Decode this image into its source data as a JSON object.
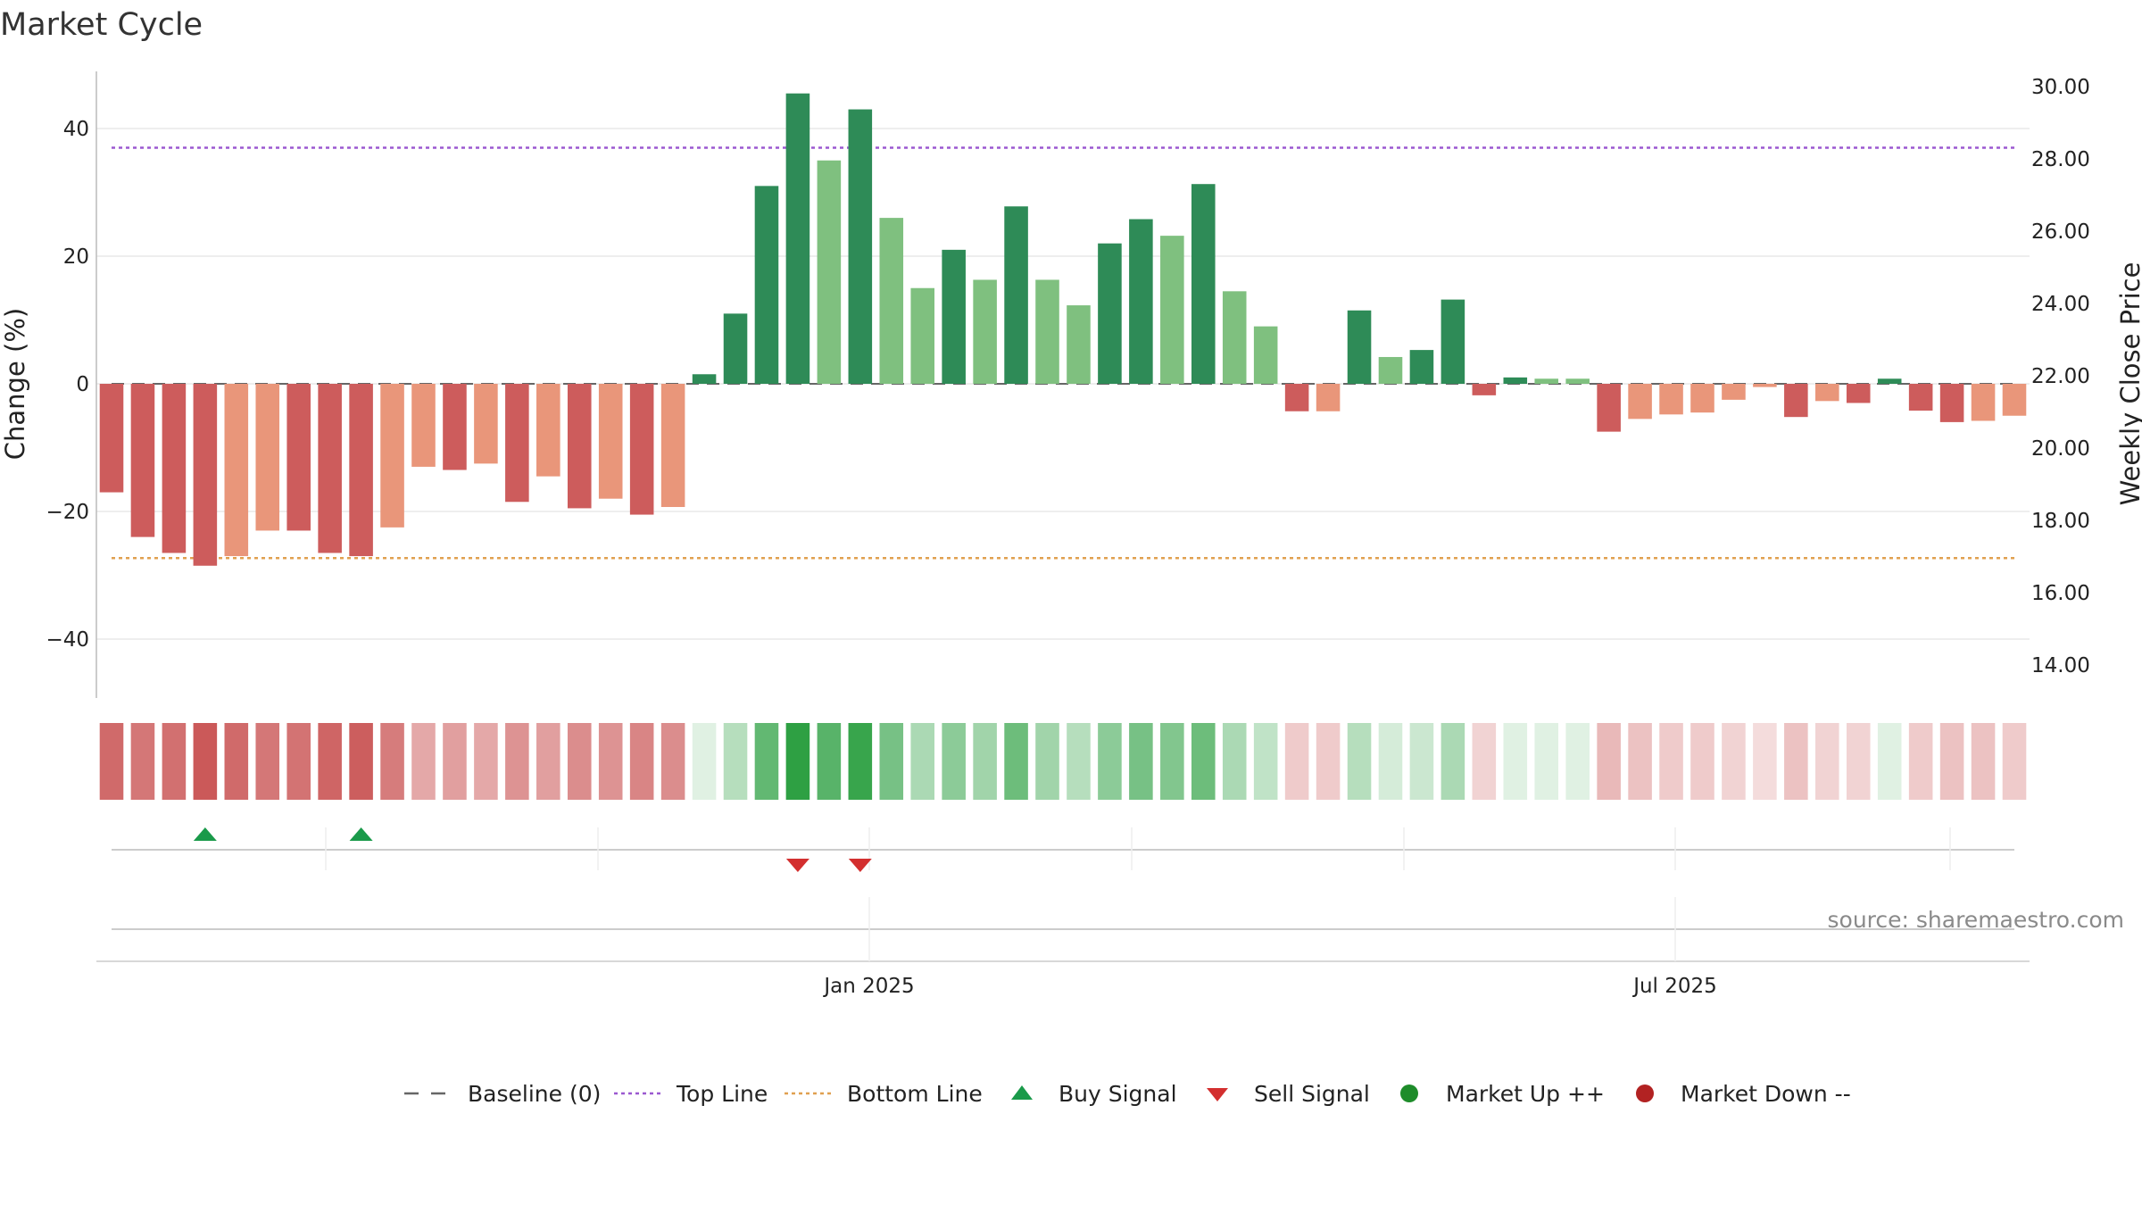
{
  "chart_data": {
    "type": "bar",
    "title": "Market Cycle",
    "ylabel": "Change (%)",
    "ylabel_right": "Weekly Close Price",
    "ylim": [
      -49,
      49
    ],
    "ylim_right": [
      13.5,
      30.2
    ],
    "yticks": [
      40,
      20,
      0,
      -20,
      -40
    ],
    "ytick_labels": [
      "40",
      "20",
      "0",
      "−20",
      "−40"
    ],
    "yticks_right": [
      30,
      28,
      26,
      24,
      22,
      20,
      18,
      16,
      14
    ],
    "ytick_labels_right": [
      "30.00",
      "28.00",
      "26.00",
      "24.00",
      "22.00",
      "20.00",
      "18.00",
      "16.00",
      "14.00"
    ],
    "x_labels": [
      "Jan 2025",
      "Jul 2025"
    ],
    "baseline": 0,
    "top_line": 37,
    "bottom_line": -27.3,
    "values": [
      -17,
      -24,
      -26.5,
      -28.5,
      -27,
      -23,
      -23,
      -26.5,
      -27,
      -22.5,
      -13,
      -13.5,
      -12.5,
      -18.5,
      -14.5,
      -19.5,
      -18,
      -20.5,
      -19.3,
      1.5,
      11,
      31,
      45.5,
      35,
      43,
      26,
      15,
      21,
      16.3,
      27.8,
      16.3,
      12.3,
      22,
      25.8,
      23.2,
      31.3,
      14.5,
      9,
      -4.3,
      -4.3,
      11.5,
      4.2,
      5.3,
      13.2,
      -1.8,
      1,
      0.8,
      0.8,
      -7.5,
      -5.5,
      -4.8,
      -4.5,
      -2.5,
      -0.5,
      -5.2,
      -2.7,
      -3,
      0.8,
      -4.2,
      -6,
      -5.8,
      -5
    ],
    "shades": [
      3,
      3,
      3,
      3,
      1,
      1,
      3,
      3,
      3,
      1,
      1,
      3,
      1,
      3,
      1,
      3,
      1,
      3,
      1,
      3,
      3,
      3,
      3,
      1,
      3,
      1,
      1,
      3,
      1,
      3,
      1,
      1,
      3,
      3,
      1,
      3,
      1,
      1,
      3,
      1,
      3,
      1,
      3,
      3,
      3,
      3,
      1,
      1,
      3,
      1,
      1,
      1,
      1,
      1,
      3,
      1,
      3,
      3,
      3,
      3,
      1,
      1
    ],
    "heat": [
      0.85,
      0.78,
      0.82,
      0.95,
      0.85,
      0.78,
      0.8,
      0.88,
      0.92,
      0.75,
      0.5,
      0.55,
      0.5,
      0.62,
      0.55,
      0.65,
      0.62,
      0.7,
      0.65,
      0.15,
      0.35,
      0.75,
      1.0,
      0.8,
      0.95,
      0.65,
      0.4,
      0.55,
      0.45,
      0.7,
      0.45,
      0.35,
      0.55,
      0.65,
      0.6,
      0.7,
      0.4,
      0.3,
      0.3,
      0.3,
      0.35,
      0.2,
      0.25,
      0.4,
      0.25,
      0.15,
      0.15,
      0.15,
      0.4,
      0.35,
      0.3,
      0.3,
      0.25,
      0.2,
      0.35,
      0.25,
      0.25,
      0.15,
      0.3,
      0.35,
      0.35,
      0.3
    ],
    "buy_signals": [
      3,
      8
    ],
    "sell_signals": [
      22,
      24
    ],
    "legend": [
      "Baseline (0)",
      "Top Line",
      "Bottom Line",
      "Buy Signal",
      "Sell Signal",
      "Market Up ++",
      "Market Down --"
    ],
    "source": "source: sharemaestro.com",
    "colors": {
      "up_strong": "#2e8b57",
      "up_light": "#7fc07f",
      "down_strong": "#cd5c5c",
      "down_light": "#e9967a",
      "top_line": "#9b59d0",
      "bottom_line": "#e0a050",
      "baseline": "#666666",
      "buy": "#1a9a4a",
      "sell": "#d32f2f",
      "market_up": "#1e8c2a",
      "market_down": "#b22222",
      "grid": "#e8e8e8",
      "axis": "#bbbbbb"
    }
  }
}
